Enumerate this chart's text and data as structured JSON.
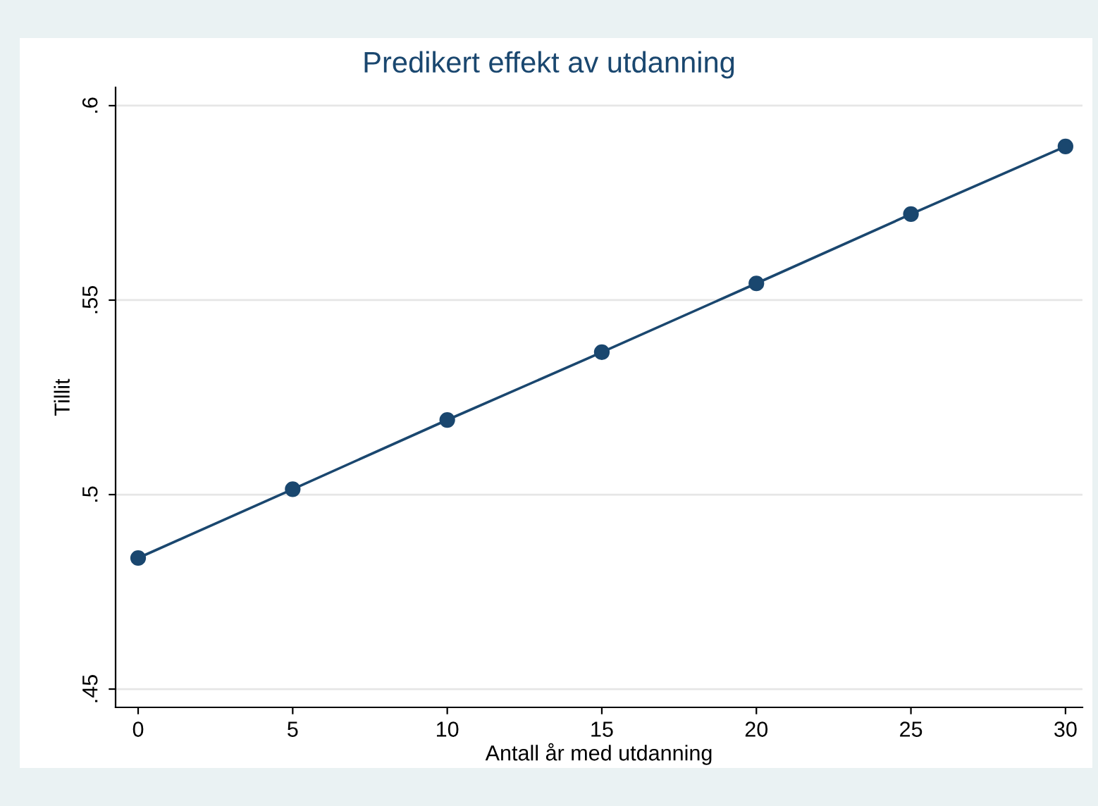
{
  "chart_data": {
    "type": "line",
    "title": "Predikert effekt av utdanning",
    "xlabel": "Antall år med utdanning",
    "ylabel": "Tillit",
    "x": [
      0,
      5,
      10,
      15,
      20,
      25,
      30
    ],
    "series": [
      {
        "color": "#1a476f",
        "values": [
          0.4837,
          0.5014,
          0.5192,
          0.5366,
          0.5543,
          0.5721,
          0.5895
        ]
      }
    ],
    "xlim": [
      -0.73,
      30.55
    ],
    "xticks": [
      0,
      5,
      10,
      15,
      20,
      25,
      30
    ],
    "ylim": [
      0.4453,
      0.6047
    ],
    "yticks": [
      {
        "value": 0.45,
        "label": ".45"
      },
      {
        "value": 0.5,
        "label": ".5"
      },
      {
        "value": 0.55,
        "label": ".55"
      },
      {
        "value": 0.6,
        "label": ".6"
      }
    ],
    "grid": "y",
    "marker": "circle",
    "line_style": "solid"
  }
}
